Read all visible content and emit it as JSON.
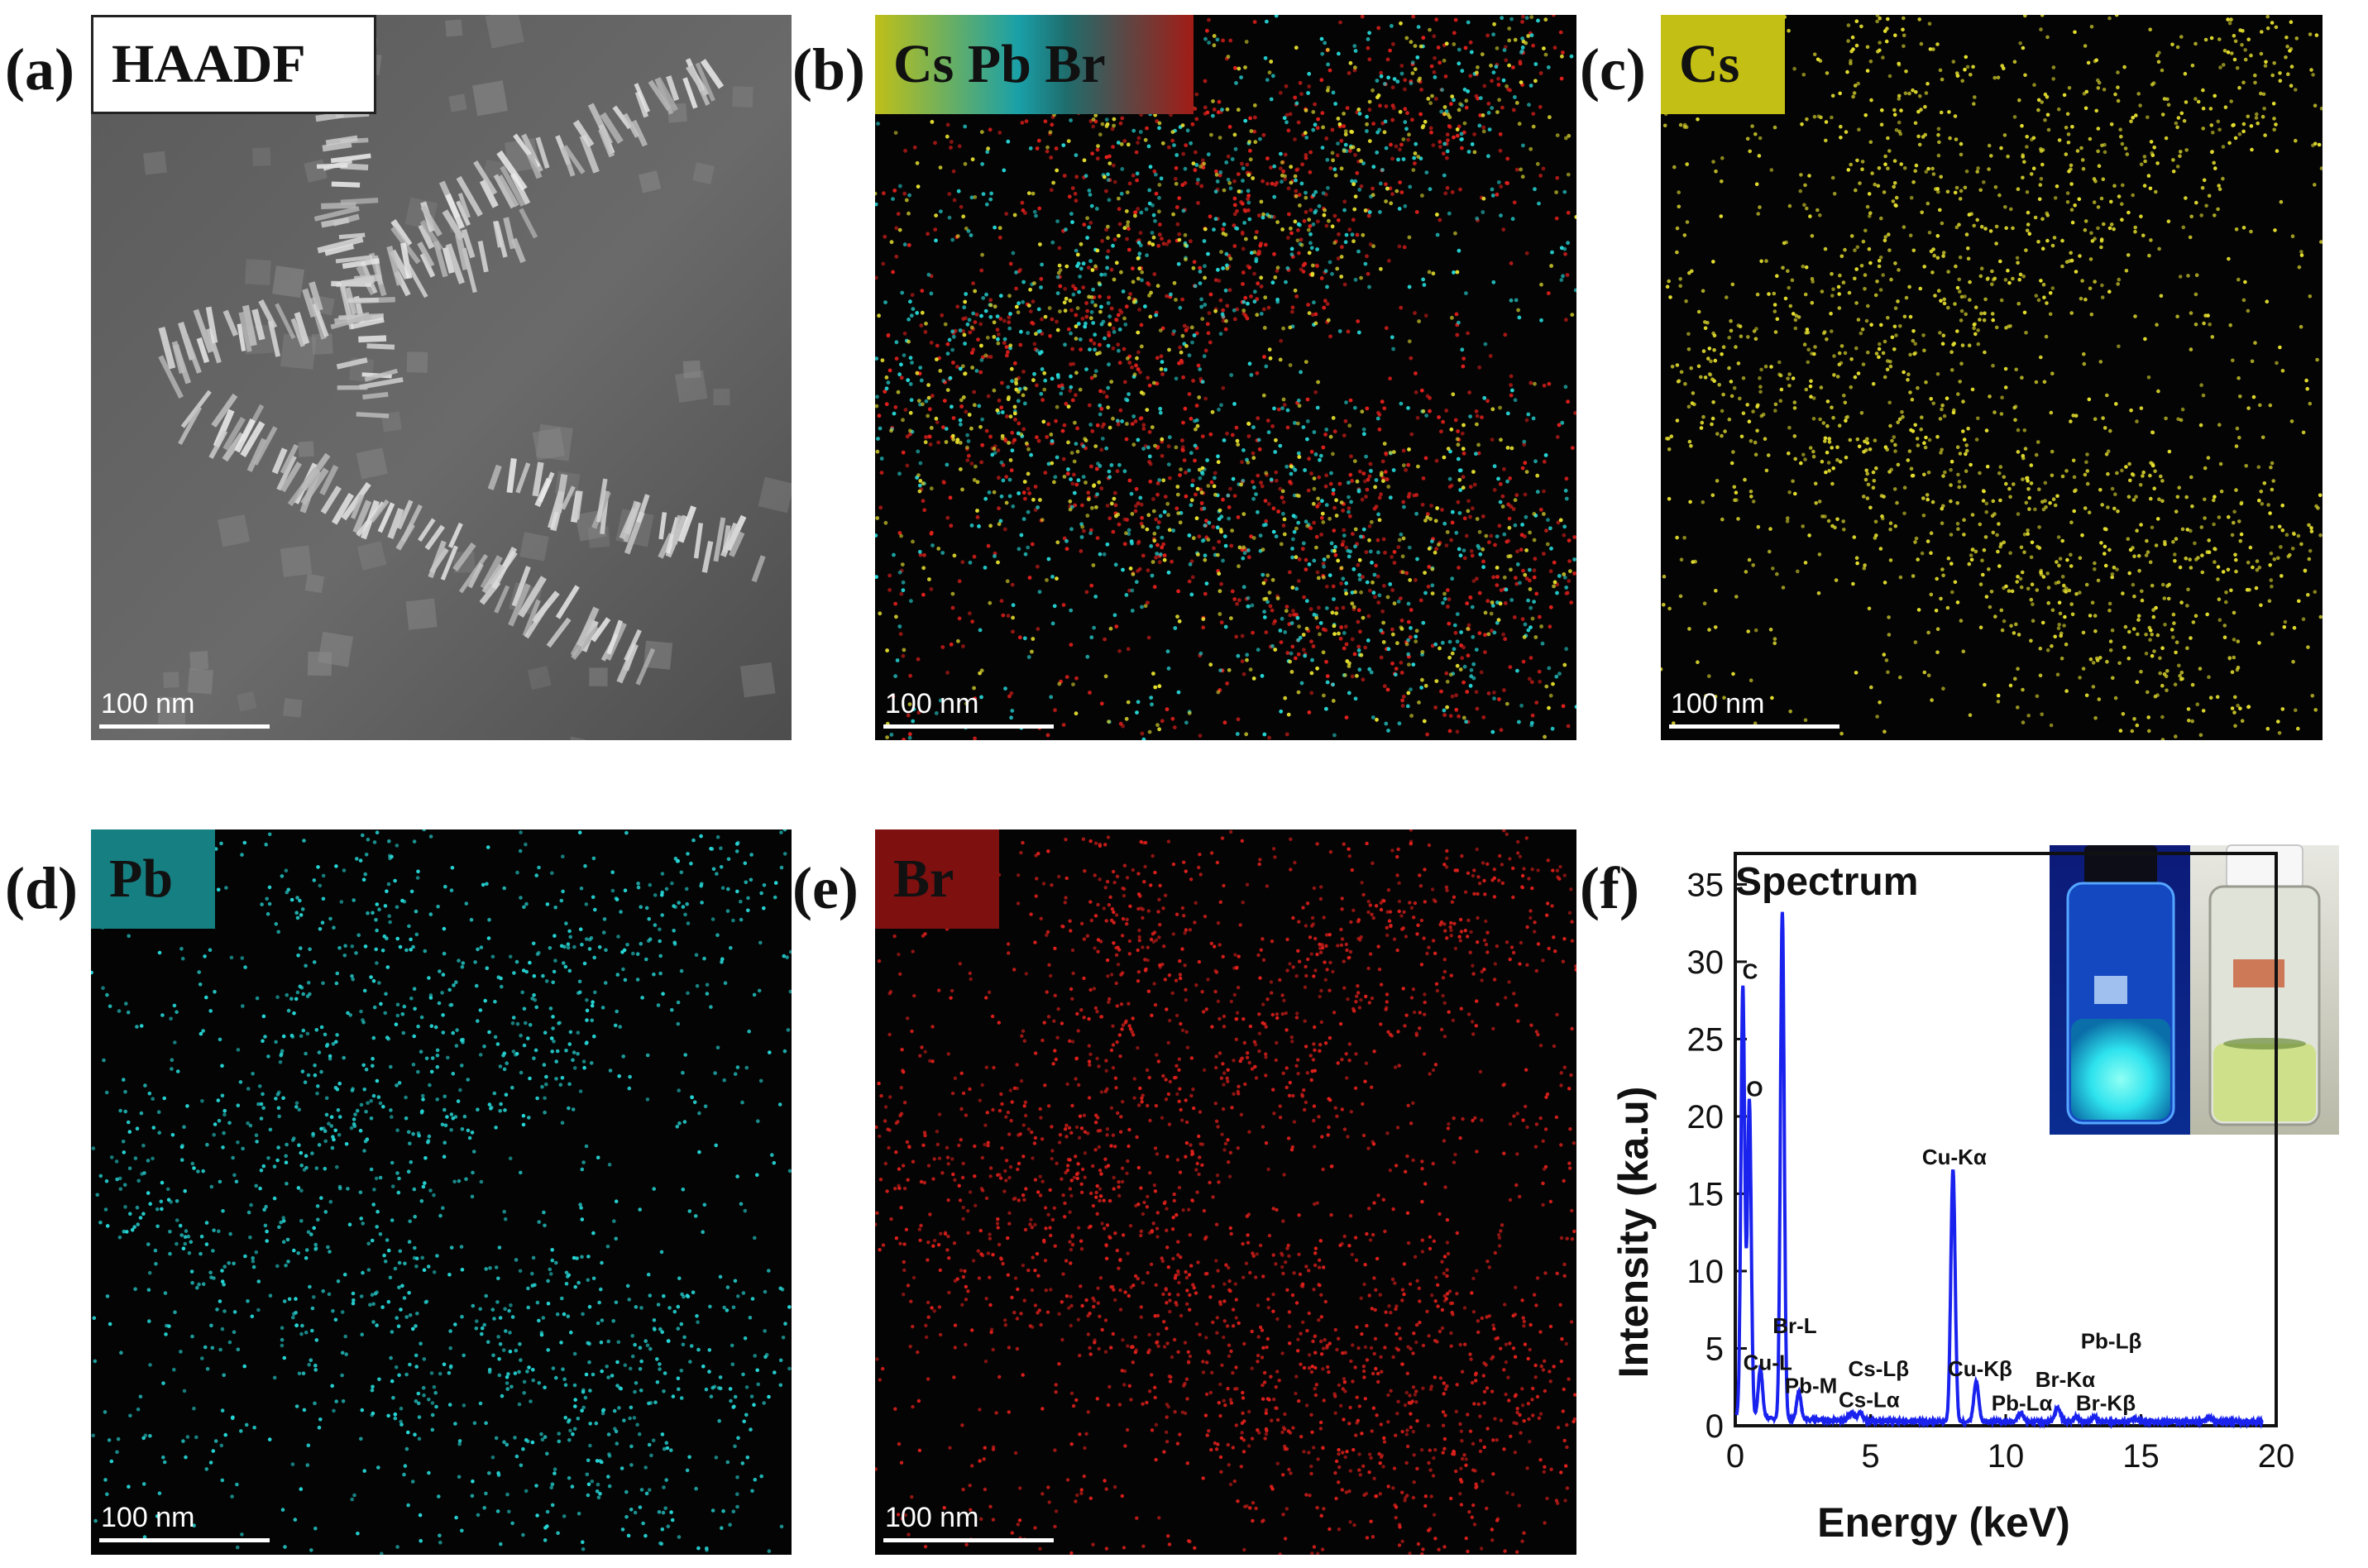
{
  "panels": {
    "a": {
      "letter": "(a)",
      "tag": "HAADF",
      "scale": "100 nm"
    },
    "b": {
      "letter": "(b)",
      "tag_parts": [
        "Cs",
        "Pb",
        "Br"
      ],
      "scale": "100 nm"
    },
    "c": {
      "letter": "(c)",
      "tag": "Cs",
      "scale": "100 nm"
    },
    "d": {
      "letter": "(d)",
      "tag": "Pb",
      "scale": "100 nm"
    },
    "e": {
      "letter": "(e)",
      "tag": "Br",
      "scale": "100 nm"
    },
    "f": {
      "letter": "(f)"
    }
  },
  "colors": {
    "cs": "#e6e030",
    "pb": "#27d7d7",
    "br": "#e0201c",
    "cs_tag": "#c3bf14",
    "pb_tag": "#167f82",
    "br_tag": "#7e1010",
    "spectrum": "#1a22ee"
  },
  "chart_data": {
    "type": "line",
    "title": "Spectrum",
    "xlabel": "Energy (keV)",
    "ylabel": "Intensity (ka.u)",
    "xlim": [
      0,
      20
    ],
    "ylim": [
      0,
      37
    ],
    "xticks": [
      0,
      5,
      10,
      15,
      20
    ],
    "yticks": [
      0,
      5,
      10,
      15,
      20,
      25,
      30,
      35
    ],
    "peaks": [
      {
        "x": 0.28,
        "y": 27.8,
        "w": 0.07
      },
      {
        "x": 0.52,
        "y": 20.5,
        "w": 0.07
      },
      {
        "x": 0.93,
        "y": 3.2,
        "w": 0.08
      },
      {
        "x": 1.74,
        "y": 32.8,
        "w": 0.07
      },
      {
        "x": 2.35,
        "y": 1.8,
        "w": 0.08
      },
      {
        "x": 4.29,
        "y": 0.5,
        "w": 0.1
      },
      {
        "x": 4.62,
        "y": 0.5,
        "w": 0.1
      },
      {
        "x": 8.05,
        "y": 16.3,
        "w": 0.08
      },
      {
        "x": 8.91,
        "y": 2.6,
        "w": 0.09
      },
      {
        "x": 10.55,
        "y": 0.6,
        "w": 0.1
      },
      {
        "x": 11.92,
        "y": 0.9,
        "w": 0.1
      },
      {
        "x": 12.61,
        "y": 0.3,
        "w": 0.1
      },
      {
        "x": 13.29,
        "y": 0.3,
        "w": 0.1
      },
      {
        "x": 14.76,
        "y": 0.2,
        "w": 0.12
      },
      {
        "x": 17.5,
        "y": 0.3,
        "w": 0.12
      }
    ],
    "annotations": [
      {
        "text": "C",
        "x": 0.55,
        "y": 28.9
      },
      {
        "text": "O",
        "x": 0.72,
        "y": 21.3
      },
      {
        "text": "Br-L",
        "x": 2.2,
        "y": 6.0
      },
      {
        "text": "Cu-L",
        "x": 1.2,
        "y": 3.6
      },
      {
        "text": "Pb-M",
        "x": 2.8,
        "y": 2.1
      },
      {
        "text": "Cs-Lβ",
        "x": 5.3,
        "y": 3.2
      },
      {
        "text": "Cs-Lα",
        "x": 4.95,
        "y": 1.2
      },
      {
        "text": "Cu-Kα",
        "x": 8.1,
        "y": 16.9
      },
      {
        "text": "Cu-Kβ",
        "x": 9.05,
        "y": 3.2
      },
      {
        "text": "Pb-Lα",
        "x": 10.6,
        "y": 1.0
      },
      {
        "text": "Br-Kα",
        "x": 12.2,
        "y": 2.5
      },
      {
        "text": "Pb-Lβ",
        "x": 13.9,
        "y": 5.0
      },
      {
        "text": "Br-Kβ",
        "x": 13.7,
        "y": 1.0
      }
    ]
  }
}
